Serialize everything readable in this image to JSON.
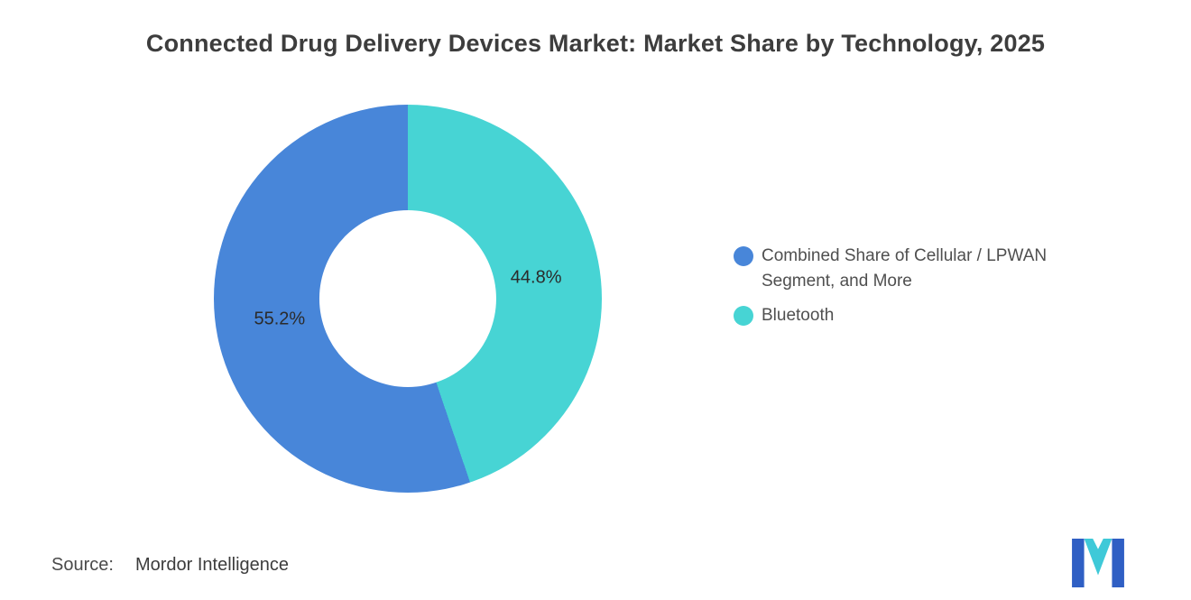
{
  "chart_data": {
    "type": "pie",
    "subtype": "donut",
    "title": "Connected Drug Delivery Devices Market: Market Share by Technology, 2025",
    "unit": "%",
    "slices": [
      {
        "label": "Combined Share of Cellular / LPWAN Segment, and More",
        "value": 55.2,
        "display": "55.2%",
        "color": "#4886d9"
      },
      {
        "label": "Bluetooth",
        "value": 44.8,
        "display": "44.8%",
        "color": "#47d4d4"
      }
    ],
    "draw_order": [
      1,
      0
    ],
    "start_angle_deg": 0,
    "direction": "clockwise",
    "donut_hole_ratio": 0.456,
    "label_radius_ratio": 0.67,
    "legend_position": "right",
    "grid": false
  },
  "footer": {
    "source_label": "Source:",
    "source_value": "Mordor Intelligence"
  },
  "logo": {
    "name": "mordor-intelligence-logo",
    "colors": {
      "blue": "#2f5fc4",
      "teal": "#3fc9d8"
    }
  }
}
